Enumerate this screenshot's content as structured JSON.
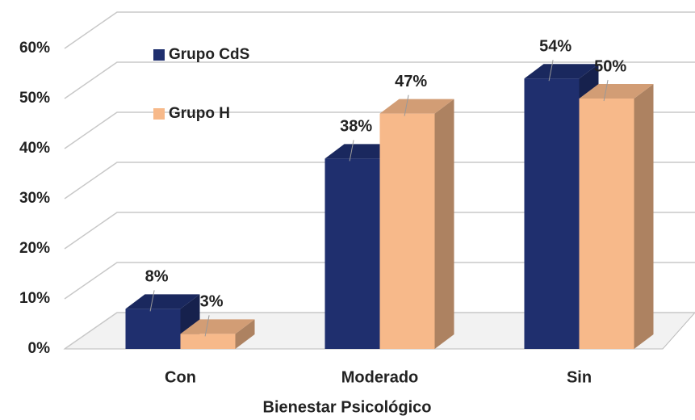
{
  "chart_data": {
    "type": "bar3d",
    "x_label": "Bienestar Psicológico",
    "categories": [
      "Con",
      "Moderado",
      "Sin"
    ],
    "series": [
      {
        "name": "Grupo CdS",
        "color": "#1f2f6e",
        "values": [
          8,
          38,
          54
        ],
        "value_labels": [
          "8%",
          "38%",
          "54%"
        ]
      },
      {
        "name": "Grupo H",
        "color": "#f7b98a",
        "values": [
          3,
          47,
          50
        ],
        "value_labels": [
          "3%",
          "47%",
          "50%"
        ]
      }
    ],
    "ylim": [
      0,
      60
    ],
    "yticks": [
      {
        "value": 0,
        "label": "0%"
      },
      {
        "value": 10,
        "label": "10%"
      },
      {
        "value": 20,
        "label": "20%"
      },
      {
        "value": 30,
        "label": "30%"
      },
      {
        "value": 40,
        "label": "40%"
      },
      {
        "value": 50,
        "label": "50%"
      },
      {
        "value": 60,
        "label": "60%"
      }
    ],
    "grid": true
  }
}
